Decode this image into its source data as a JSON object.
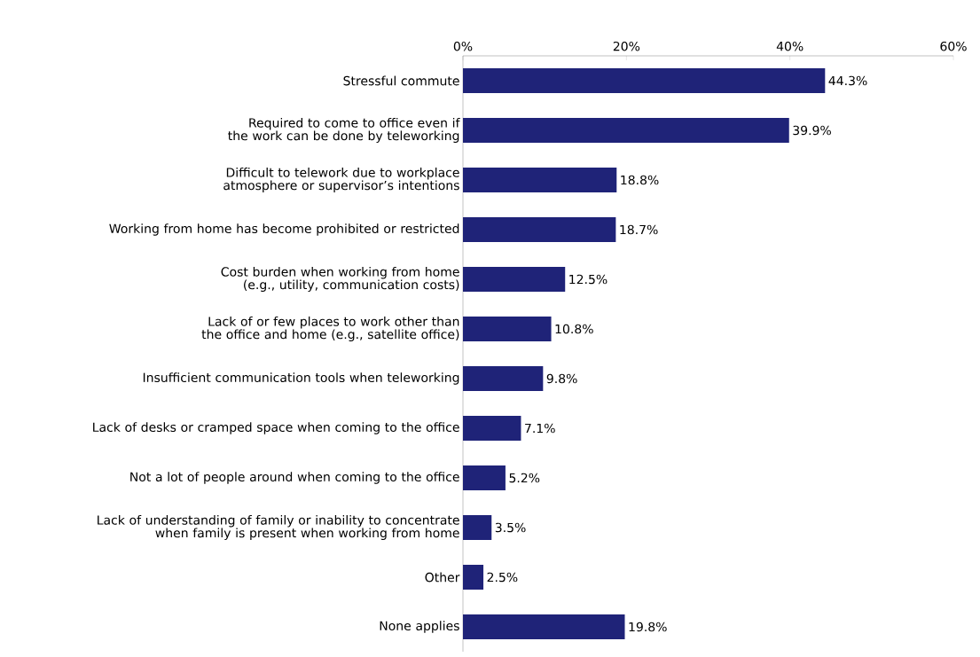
{
  "chart_data": {
    "type": "bar",
    "orientation": "horizontal",
    "categories": [
      "Stressful commute",
      "Required to come to office even if the work can be done by teleworking",
      "Difficult to telework due to workplace atmosphere or supervisor’s intentions",
      "Working from home has become prohibited or restricted",
      "Cost burden when working from home (e.g., utility, communication costs)",
      "Lack of or few places to work other than the office and home (e.g., satellite office)",
      "Insufficient communication tools when teleworking",
      "Lack of desks or cramped space when coming to the office",
      "Not a lot of people around when coming to the office",
      "Lack of understanding of family or inability to concentrate when family is present when working from home",
      "Other",
      "None applies"
    ],
    "values": [
      44.3,
      39.9,
      18.8,
      18.7,
      12.5,
      10.8,
      9.8,
      7.1,
      5.2,
      3.5,
      2.5,
      19.8
    ],
    "value_labels": [
      "44.3%",
      "39.9%",
      "18.8%",
      "18.7%",
      "12.5%",
      "10.8%",
      "9.8%",
      "7.1%",
      "5.2%",
      "3.5%",
      "2.5%",
      "19.8%"
    ],
    "color": "#1f2378",
    "xlim": [
      0,
      60
    ],
    "xticks": [
      {
        "value": 0,
        "label": "0%"
      },
      {
        "value": 20,
        "label": "20%"
      },
      {
        "value": 40,
        "label": "40%"
      },
      {
        "value": 60,
        "label": "60%"
      }
    ]
  }
}
